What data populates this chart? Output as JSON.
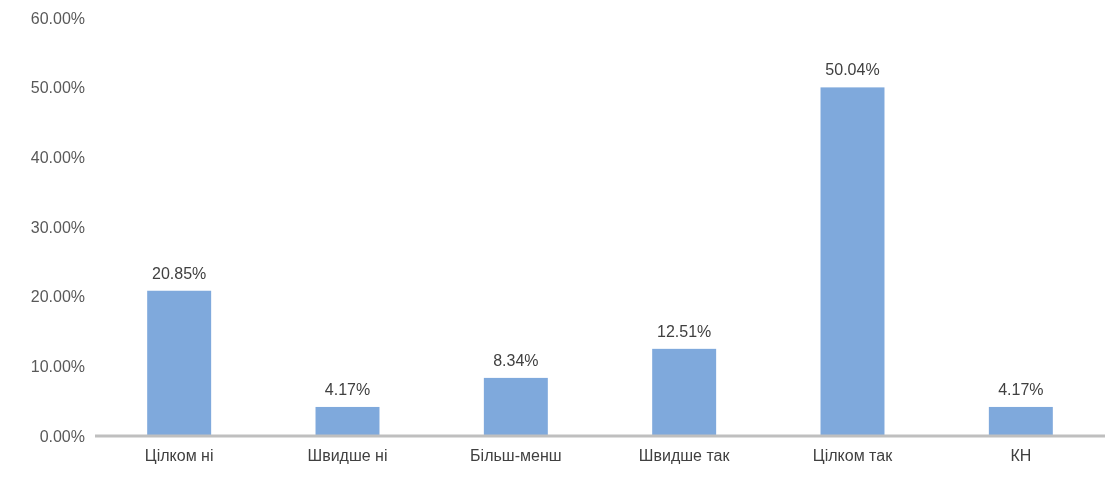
{
  "chart_data": {
    "type": "bar",
    "categories": [
      "Цілком ні",
      "Швидше ні",
      "Більш-менш",
      "Швидше так",
      "Цілком так",
      "КН"
    ],
    "values": [
      20.85,
      4.17,
      8.34,
      12.51,
      50.04,
      4.17
    ],
    "value_labels": [
      "20.85%",
      "4.17%",
      "8.34%",
      "12.51%",
      "50.04%",
      "4.17%"
    ],
    "color": "#7fa9dc",
    "ylim": [
      0,
      60
    ],
    "yticks": [
      {
        "value": 0,
        "label": "0.00%"
      },
      {
        "value": 10,
        "label": "10.00%"
      },
      {
        "value": 20,
        "label": "20.00%"
      },
      {
        "value": 30,
        "label": "30.00%"
      },
      {
        "value": 40,
        "label": "40.00%"
      },
      {
        "value": 50,
        "label": "50.00%"
      },
      {
        "value": 60,
        "label": "60.00%"
      }
    ],
    "grid": false
  }
}
